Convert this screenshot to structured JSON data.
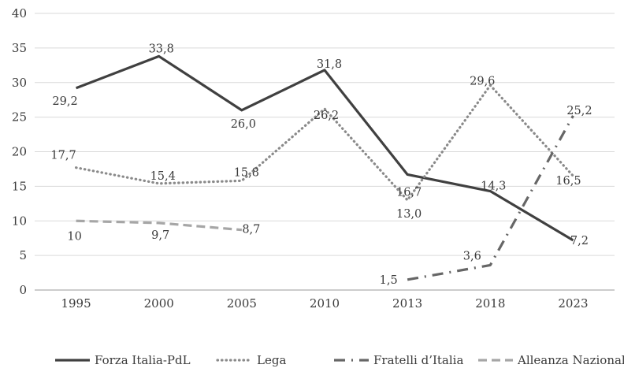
{
  "chart_data": {
    "type": "line",
    "title": "",
    "xlabel": "",
    "ylabel": "",
    "x": [
      "1995",
      "2000",
      "2005",
      "2010",
      "2013",
      "2018",
      "2023"
    ],
    "ylim": [
      0,
      40
    ],
    "yticks": [
      "0",
      "5",
      "10",
      "15",
      "20",
      "25",
      "30",
      "35",
      "40"
    ],
    "grid": "horizontal",
    "legend_position": "bottom",
    "series": [
      {
        "name": "Forza Italia-PdL",
        "values": [
          29.2,
          33.8,
          26.0,
          31.8,
          16.7,
          14.3,
          7.2
        ],
        "labels": [
          "29,2",
          "33,8",
          "26,0",
          "31,8",
          "16,7",
          "14,3",
          "7,2"
        ],
        "color": "#404040",
        "style": "solid"
      },
      {
        "name": "Lega",
        "values": [
          17.7,
          15.4,
          15.8,
          26.2,
          13.0,
          29.6,
          16.5
        ],
        "labels": [
          "17,7",
          "15,4",
          "15,8",
          "26,2",
          "13,0",
          "29,6",
          "16,5"
        ],
        "color": "#8a8a8a",
        "style": "dotted"
      },
      {
        "name": "Fratelli d’Italia",
        "values": [
          null,
          null,
          null,
          null,
          1.5,
          3.6,
          25.2
        ],
        "labels": [
          null,
          null,
          null,
          null,
          "1,5",
          "3,6",
          "25,2"
        ],
        "color": "#666666",
        "style": "dash-dot"
      },
      {
        "name": "Alleanza Nazionale",
        "values": [
          10,
          9.7,
          8.7,
          null,
          null,
          null,
          null
        ],
        "labels": [
          "10",
          "9,7",
          "8,7",
          null,
          null,
          null,
          null
        ],
        "color": "#a6a6a6",
        "style": "dashed"
      }
    ]
  }
}
